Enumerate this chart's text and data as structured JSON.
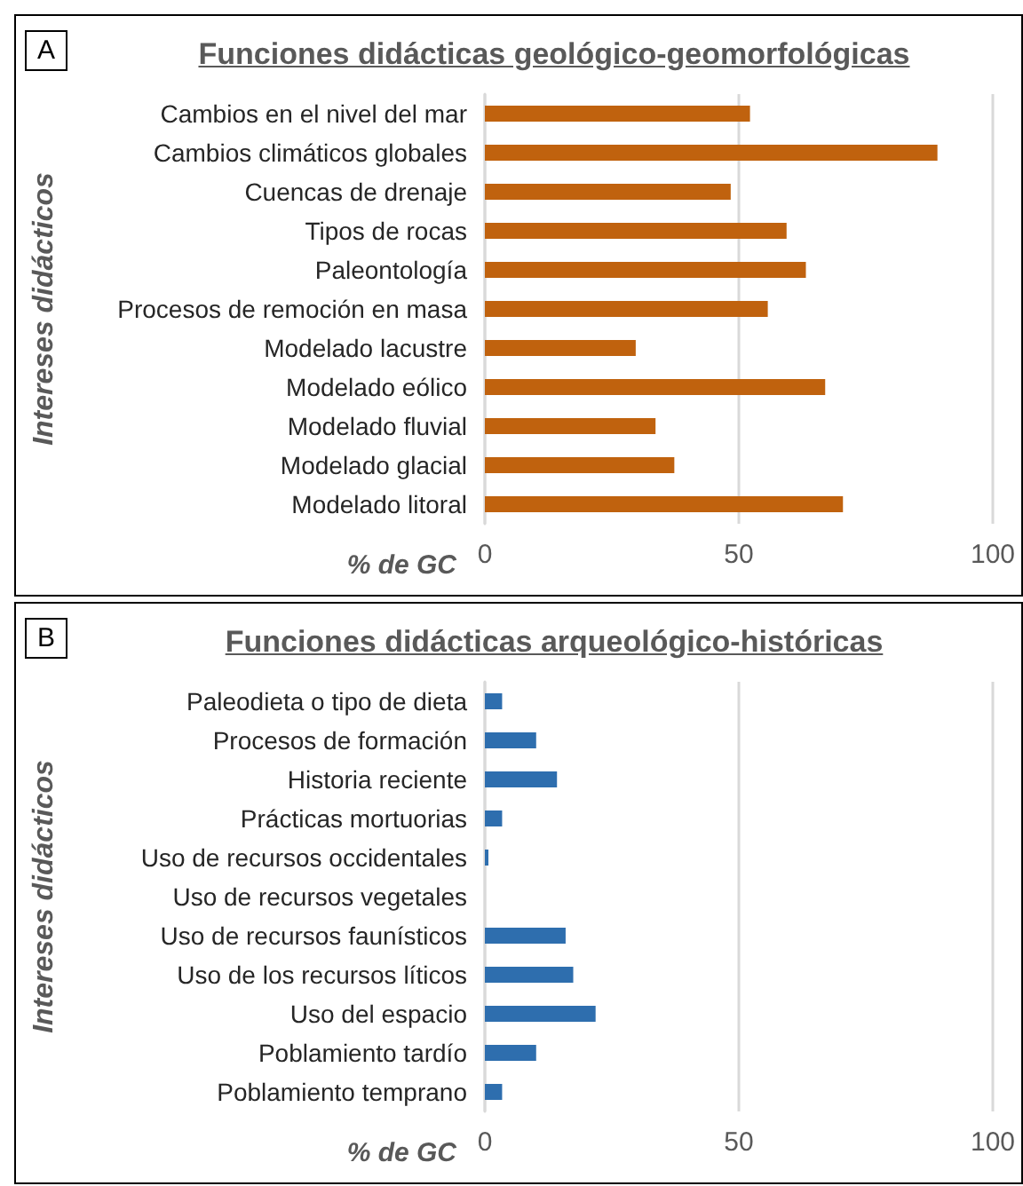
{
  "chart_data": [
    {
      "type": "bar",
      "orientation": "horizontal",
      "title": "Funciones didácticas geológico-geomorfológicas",
      "xlabel": "% de GC",
      "ylabel": "Intereses didácticos",
      "annotations": [
        "A"
      ],
      "categories": [
        "Cambios en el nivel del mar",
        "Cambios climáticos globales",
        "Cuencas de drenaje",
        "Tipos de rocas",
        "Paleontología",
        "Procesos de remoción en masa",
        "Modelado lacustre",
        "Modelado eólico",
        "Modelado fluvial",
        "Modelado glacial",
        "Modelado litoral"
      ],
      "values": [
        52.2,
        89.1,
        48.4,
        59.4,
        63.2,
        55.7,
        29.7,
        67.0,
        33.6,
        37.3,
        70.5
      ],
      "color": "#c0620e",
      "xlim": [
        0,
        100
      ],
      "xticks": [
        0,
        50,
        100
      ],
      "grid": "x"
    },
    {
      "type": "bar",
      "orientation": "horizontal",
      "title": "Funciones didácticas arqueológico-históricas",
      "xlabel": "% de GC",
      "ylabel": "Intereses didácticos",
      "annotations": [
        "B"
      ],
      "categories": [
        "Paleodieta o tipo de dieta",
        "Procesos de formación",
        "Historia reciente",
        "Prácticas mortuorias",
        "Uso de recursos occidentales",
        "Uso de recursos vegetales",
        "Uso de recursos faunísticos",
        "Uso de los recursos líticos",
        "Uso del espacio",
        "Poblamiento tardío",
        "Poblamiento temprano"
      ],
      "values": [
        3.4,
        10.1,
        14.2,
        3.4,
        0.7,
        0,
        15.9,
        17.4,
        21.8,
        10.1,
        3.4
      ],
      "color": "#2e6eae",
      "xlim": [
        0,
        100
      ],
      "xticks": [
        0,
        50,
        100
      ],
      "grid": "x"
    }
  ]
}
